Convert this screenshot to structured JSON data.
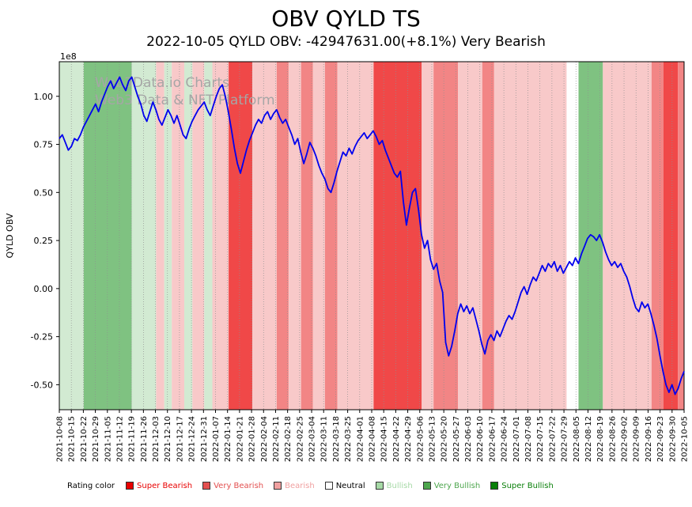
{
  "watermark": {
    "line1": "Web3Data.io Charts",
    "line2": "Web3 Data & NFT Platform",
    "color": "#a6a6a6"
  },
  "legend": {
    "label": "Rating color",
    "items": [
      {
        "label": "Super Bearish",
        "color": "#e80000",
        "text_color": "#e80000"
      },
      {
        "label": "Very Bearish",
        "color": "#e34f4f",
        "text_color": "#e34f4f"
      },
      {
        "label": "Bearish",
        "color": "#f0a0a0",
        "text_color": "#f0a0a0"
      },
      {
        "label": "Neutral",
        "color": "#ffffff",
        "text_color": "#000000"
      },
      {
        "label": "Bullish",
        "color": "#a6d9a6",
        "text_color": "#a6d9a6"
      },
      {
        "label": "Very Bullish",
        "color": "#4da64d",
        "text_color": "#4da64d"
      },
      {
        "label": "Super Bullish",
        "color": "#087f08",
        "text_color": "#087f08"
      }
    ]
  },
  "chart_data": {
    "type": "line",
    "title": "OBV QYLD TS",
    "subtitle": "2022-10-05 QYLD OBV: -42947631.00(+8.1%) Very Bearish",
    "ylabel": "QYLD OBV",
    "y_offset_label": "1e8",
    "y_unit": 100000000,
    "ylim": [
      -0.63,
      1.18
    ],
    "y_ticks": [
      1.0,
      0.75,
      0.5,
      0.25,
      0.0,
      -0.25,
      -0.5
    ],
    "grid": "vertical-dotted",
    "legend_position": "bottom",
    "line_color": "#0000ee",
    "last_point": {
      "date": "2022-10-05",
      "obv": -42947631.0,
      "change_pct": 8.1,
      "rating": "Very Bearish"
    },
    "x_tick_labels": [
      "2021-10-08",
      "2021-10-15",
      "2021-10-22",
      "2021-10-29",
      "2021-11-05",
      "2021-11-12",
      "2021-11-19",
      "2021-11-26",
      "2021-12-03",
      "2021-12-10",
      "2021-12-17",
      "2021-12-24",
      "2021-12-31",
      "2022-01-07",
      "2022-01-14",
      "2022-01-21",
      "2022-01-28",
      "2022-02-04",
      "2022-02-11",
      "2022-02-18",
      "2022-02-25",
      "2022-03-04",
      "2022-03-11",
      "2022-03-18",
      "2022-03-25",
      "2022-04-01",
      "2022-04-08",
      "2022-04-15",
      "2022-04-22",
      "2022-04-29",
      "2022-05-06",
      "2022-05-13",
      "2022-05-20",
      "2022-05-27",
      "2022-06-03",
      "2022-06-10",
      "2022-06-17",
      "2022-06-24",
      "2022-07-01",
      "2022-07-08",
      "2022-07-15",
      "2022-07-22",
      "2022-07-29",
      "2022-08-05",
      "2022-08-12",
      "2022-08-19",
      "2022-08-26",
      "2022-09-02",
      "2022-09-09",
      "2022-09-16",
      "2022-09-23",
      "2022-09-30",
      "2022-10-05"
    ],
    "series": [
      {
        "name": "QYLD OBV (1e8 units)",
        "values": [
          0.78,
          0.8,
          0.76,
          0.72,
          0.74,
          0.78,
          0.77,
          0.8,
          0.84,
          0.87,
          0.9,
          0.93,
          0.96,
          0.92,
          0.97,
          1.01,
          1.05,
          1.08,
          1.04,
          1.07,
          1.1,
          1.06,
          1.03,
          1.08,
          1.1,
          1.05,
          1.0,
          0.96,
          0.9,
          0.87,
          0.92,
          0.97,
          0.93,
          0.88,
          0.85,
          0.89,
          0.93,
          0.9,
          0.86,
          0.9,
          0.85,
          0.8,
          0.78,
          0.83,
          0.87,
          0.9,
          0.93,
          0.95,
          0.97,
          0.93,
          0.9,
          0.95,
          1.0,
          1.04,
          1.06,
          1.0,
          0.92,
          0.83,
          0.73,
          0.65,
          0.6,
          0.66,
          0.72,
          0.77,
          0.81,
          0.85,
          0.88,
          0.86,
          0.9,
          0.92,
          0.88,
          0.91,
          0.93,
          0.89,
          0.86,
          0.88,
          0.84,
          0.8,
          0.75,
          0.78,
          0.71,
          0.65,
          0.7,
          0.76,
          0.73,
          0.69,
          0.64,
          0.6,
          0.57,
          0.52,
          0.5,
          0.55,
          0.61,
          0.66,
          0.71,
          0.69,
          0.73,
          0.7,
          0.74,
          0.77,
          0.79,
          0.81,
          0.78,
          0.8,
          0.82,
          0.79,
          0.75,
          0.77,
          0.72,
          0.68,
          0.64,
          0.6,
          0.58,
          0.61,
          0.45,
          0.33,
          0.42,
          0.5,
          0.52,
          0.41,
          0.28,
          0.21,
          0.25,
          0.15,
          0.1,
          0.13,
          0.04,
          -0.02,
          -0.28,
          -0.35,
          -0.3,
          -0.22,
          -0.13,
          -0.08,
          -0.12,
          -0.09,
          -0.13,
          -0.1,
          -0.16,
          -0.22,
          -0.29,
          -0.34,
          -0.27,
          -0.24,
          -0.27,
          -0.22,
          -0.25,
          -0.21,
          -0.17,
          -0.14,
          -0.16,
          -0.12,
          -0.07,
          -0.02,
          0.01,
          -0.03,
          0.02,
          0.06,
          0.04,
          0.08,
          0.12,
          0.09,
          0.13,
          0.11,
          0.14,
          0.09,
          0.12,
          0.08,
          0.11,
          0.14,
          0.12,
          0.16,
          0.13,
          0.18,
          0.22,
          0.26,
          0.28,
          0.27,
          0.25,
          0.28,
          0.24,
          0.19,
          0.15,
          0.12,
          0.14,
          0.11,
          0.13,
          0.09,
          0.06,
          0.01,
          -0.05,
          -0.1,
          -0.12,
          -0.07,
          -0.1,
          -0.08,
          -0.13,
          -0.19,
          -0.26,
          -0.35,
          -0.43,
          -0.5,
          -0.54,
          -0.5,
          -0.55,
          -0.52,
          -0.47,
          -0.43
        ]
      }
    ],
    "band_colors": {
      "Super Bearish": "#f04848",
      "Very Bearish": "#f28585",
      "Bearish": "#f8c9c9",
      "Neutral": "#ffffff",
      "Bullish": "#d2ead2",
      "Very Bullish": "#7fc281",
      "Super Bullish": "#2f8f2f"
    },
    "bands": [
      {
        "start": 0.0,
        "end": 0.039,
        "rating": "Bullish"
      },
      {
        "start": 0.039,
        "end": 0.116,
        "rating": "Very Bullish"
      },
      {
        "start": 0.116,
        "end": 0.155,
        "rating": "Bullish"
      },
      {
        "start": 0.155,
        "end": 0.168,
        "rating": "Bearish"
      },
      {
        "start": 0.168,
        "end": 0.18,
        "rating": "Bullish"
      },
      {
        "start": 0.18,
        "end": 0.2,
        "rating": "Bearish"
      },
      {
        "start": 0.2,
        "end": 0.213,
        "rating": "Bullish"
      },
      {
        "start": 0.213,
        "end": 0.232,
        "rating": "Bearish"
      },
      {
        "start": 0.232,
        "end": 0.245,
        "rating": "Bullish"
      },
      {
        "start": 0.245,
        "end": 0.271,
        "rating": "Bearish"
      },
      {
        "start": 0.271,
        "end": 0.309,
        "rating": "Super Bearish"
      },
      {
        "start": 0.309,
        "end": 0.348,
        "rating": "Bearish"
      },
      {
        "start": 0.348,
        "end": 0.367,
        "rating": "Very Bearish"
      },
      {
        "start": 0.367,
        "end": 0.387,
        "rating": "Bearish"
      },
      {
        "start": 0.387,
        "end": 0.406,
        "rating": "Very Bearish"
      },
      {
        "start": 0.406,
        "end": 0.425,
        "rating": "Bearish"
      },
      {
        "start": 0.425,
        "end": 0.445,
        "rating": "Very Bearish"
      },
      {
        "start": 0.445,
        "end": 0.503,
        "rating": "Bearish"
      },
      {
        "start": 0.503,
        "end": 0.58,
        "rating": "Super Bearish"
      },
      {
        "start": 0.58,
        "end": 0.599,
        "rating": "Bearish"
      },
      {
        "start": 0.599,
        "end": 0.638,
        "rating": "Very Bearish"
      },
      {
        "start": 0.638,
        "end": 0.677,
        "rating": "Bearish"
      },
      {
        "start": 0.677,
        "end": 0.696,
        "rating": "Very Bearish"
      },
      {
        "start": 0.696,
        "end": 0.812,
        "rating": "Bearish"
      },
      {
        "start": 0.812,
        "end": 0.831,
        "rating": "Neutral"
      },
      {
        "start": 0.831,
        "end": 0.87,
        "rating": "Very Bullish"
      },
      {
        "start": 0.87,
        "end": 0.948,
        "rating": "Bearish"
      },
      {
        "start": 0.948,
        "end": 0.967,
        "rating": "Very Bearish"
      },
      {
        "start": 0.967,
        "end": 0.99,
        "rating": "Super Bearish"
      },
      {
        "start": 0.99,
        "end": 1.0,
        "rating": "Very Bearish"
      }
    ]
  }
}
